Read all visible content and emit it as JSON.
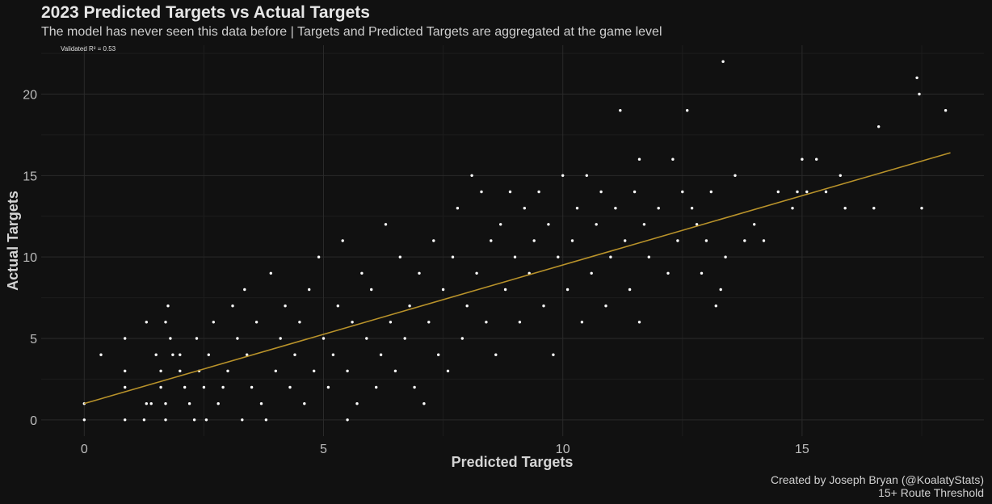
{
  "header": {
    "title": "2023 Predicted Targets vs Actual Targets",
    "subtitle": "The model has never seen this data before | Targets and Predicted Targets are aggregated at the game level"
  },
  "footer": {
    "caption_line1": "Created by Joseph Bryan (@KoalatyStats)",
    "caption_line2": "15+ Route Threshold"
  },
  "colors": {
    "background": "#111111",
    "points": "#ffffff",
    "fit_line": "#b8922a",
    "grid": "#2a2a2a"
  },
  "chart_data": {
    "type": "scatter",
    "title": "2023 Predicted Targets vs Actual Targets",
    "subtitle": "The model has never seen this data before | Targets and Predicted Targets are aggregated at the game level",
    "xlabel": "Predicted Targets",
    "ylabel": "Actual Targets",
    "annotation": "Validated R² = 0.53",
    "xlim": [
      -0.9,
      18.8
    ],
    "ylim": [
      -1,
      23
    ],
    "x_ticks": [
      0,
      5,
      10,
      15
    ],
    "y_ticks": [
      0,
      5,
      10,
      15,
      20
    ],
    "grid": true,
    "legend": "none",
    "fit_line": {
      "x": [
        0,
        18.1
      ],
      "y": [
        1.0,
        16.4
      ]
    },
    "points": [
      [
        0,
        0
      ],
      [
        0,
        1
      ],
      [
        0.35,
        4
      ],
      [
        0.85,
        0
      ],
      [
        0.85,
        2
      ],
      [
        0.85,
        3
      ],
      [
        0.85,
        5
      ],
      [
        1.25,
        0
      ],
      [
        1.3,
        1
      ],
      [
        1.3,
        6
      ],
      [
        1.4,
        1
      ],
      [
        1.5,
        4
      ],
      [
        1.6,
        2
      ],
      [
        1.6,
        3
      ],
      [
        1.7,
        0
      ],
      [
        1.7,
        1
      ],
      [
        1.7,
        6
      ],
      [
        1.75,
        7
      ],
      [
        1.8,
        5
      ],
      [
        1.85,
        4
      ],
      [
        2.0,
        3
      ],
      [
        2.0,
        4
      ],
      [
        2.1,
        2
      ],
      [
        2.2,
        1
      ],
      [
        2.3,
        0
      ],
      [
        2.35,
        5
      ],
      [
        2.4,
        3
      ],
      [
        2.5,
        2
      ],
      [
        2.55,
        0
      ],
      [
        2.6,
        4
      ],
      [
        2.7,
        6
      ],
      [
        2.8,
        1
      ],
      [
        2.9,
        2
      ],
      [
        3.0,
        3
      ],
      [
        3.1,
        7
      ],
      [
        3.2,
        5
      ],
      [
        3.3,
        0
      ],
      [
        3.35,
        8
      ],
      [
        3.4,
        4
      ],
      [
        3.5,
        2
      ],
      [
        3.6,
        6
      ],
      [
        3.7,
        1
      ],
      [
        3.8,
        0
      ],
      [
        3.9,
        9
      ],
      [
        4.0,
        3
      ],
      [
        4.1,
        5
      ],
      [
        4.2,
        7
      ],
      [
        4.3,
        2
      ],
      [
        4.4,
        4
      ],
      [
        4.5,
        6
      ],
      [
        4.6,
        1
      ],
      [
        4.7,
        8
      ],
      [
        4.8,
        3
      ],
      [
        4.9,
        10
      ],
      [
        5.0,
        5
      ],
      [
        5.1,
        2
      ],
      [
        5.2,
        4
      ],
      [
        5.3,
        7
      ],
      [
        5.4,
        11
      ],
      [
        5.5,
        3
      ],
      [
        5.5,
        0
      ],
      [
        5.6,
        6
      ],
      [
        5.7,
        1
      ],
      [
        5.8,
        9
      ],
      [
        5.9,
        5
      ],
      [
        6.0,
        8
      ],
      [
        6.1,
        2
      ],
      [
        6.2,
        4
      ],
      [
        6.3,
        12
      ],
      [
        6.4,
        6
      ],
      [
        6.5,
        3
      ],
      [
        6.6,
        10
      ],
      [
        6.7,
        5
      ],
      [
        6.8,
        7
      ],
      [
        6.9,
        2
      ],
      [
        7.0,
        9
      ],
      [
        7.1,
        1
      ],
      [
        7.2,
        6
      ],
      [
        7.3,
        11
      ],
      [
        7.4,
        4
      ],
      [
        7.5,
        8
      ],
      [
        7.6,
        3
      ],
      [
        7.7,
        10
      ],
      [
        7.8,
        13
      ],
      [
        7.9,
        5
      ],
      [
        8.0,
        7
      ],
      [
        8.1,
        15
      ],
      [
        8.2,
        9
      ],
      [
        8.3,
        14
      ],
      [
        8.4,
        6
      ],
      [
        8.5,
        11
      ],
      [
        8.6,
        4
      ],
      [
        8.7,
        12
      ],
      [
        8.8,
        8
      ],
      [
        8.9,
        14
      ],
      [
        9.0,
        10
      ],
      [
        9.1,
        6
      ],
      [
        9.2,
        13
      ],
      [
        9.3,
        9
      ],
      [
        9.4,
        11
      ],
      [
        9.5,
        14
      ],
      [
        9.6,
        7
      ],
      [
        9.7,
        12
      ],
      [
        9.8,
        4
      ],
      [
        9.9,
        10
      ],
      [
        10.0,
        15
      ],
      [
        10.1,
        8
      ],
      [
        10.2,
        11
      ],
      [
        10.3,
        13
      ],
      [
        10.4,
        6
      ],
      [
        10.5,
        15
      ],
      [
        10.6,
        9
      ],
      [
        10.7,
        12
      ],
      [
        10.8,
        14
      ],
      [
        10.9,
        7
      ],
      [
        11.0,
        10
      ],
      [
        11.1,
        13
      ],
      [
        11.2,
        19
      ],
      [
        11.3,
        11
      ],
      [
        11.4,
        8
      ],
      [
        11.5,
        14
      ],
      [
        11.6,
        16
      ],
      [
        11.6,
        6
      ],
      [
        11.7,
        12
      ],
      [
        11.8,
        10
      ],
      [
        12.0,
        13
      ],
      [
        12.2,
        9
      ],
      [
        12.3,
        16
      ],
      [
        12.4,
        11
      ],
      [
        12.5,
        14
      ],
      [
        12.6,
        19
      ],
      [
        12.7,
        13
      ],
      [
        12.8,
        12
      ],
      [
        12.9,
        9
      ],
      [
        13.0,
        11
      ],
      [
        13.1,
        14
      ],
      [
        13.2,
        7
      ],
      [
        13.3,
        8
      ],
      [
        13.35,
        22
      ],
      [
        13.4,
        10
      ],
      [
        13.6,
        15
      ],
      [
        13.8,
        11
      ],
      [
        14.0,
        12
      ],
      [
        14.2,
        11
      ],
      [
        14.5,
        14
      ],
      [
        14.8,
        13
      ],
      [
        14.9,
        14
      ],
      [
        15.0,
        16
      ],
      [
        15.1,
        14
      ],
      [
        15.3,
        16
      ],
      [
        15.5,
        14
      ],
      [
        15.8,
        15
      ],
      [
        15.9,
        13
      ],
      [
        16.5,
        13
      ],
      [
        16.6,
        18
      ],
      [
        17.4,
        21
      ],
      [
        17.45,
        20
      ],
      [
        17.5,
        13
      ],
      [
        18.0,
        19
      ]
    ]
  }
}
